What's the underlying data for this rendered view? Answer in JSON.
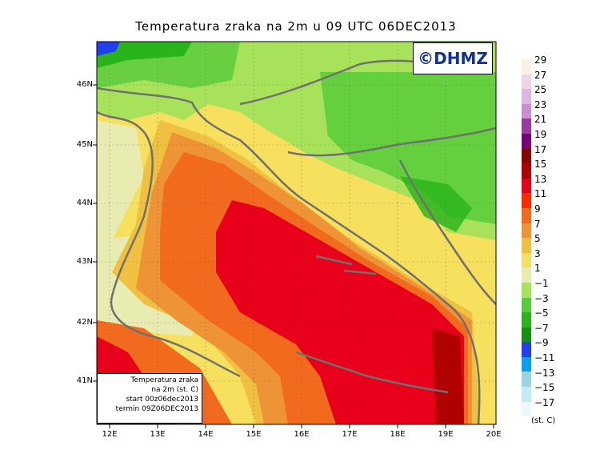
{
  "title": "Temperatura zraka na 2m u 09 UTC 06DEC2013",
  "logo": "©DHMZ",
  "infobox": {
    "line1": "Temperatura zraka",
    "line2": "na 2m (st. C)",
    "line3": "start 00z06dec2013",
    "line4": "termin 09Z06DEC2013"
  },
  "lat_labels": [
    "46N",
    "45N",
    "44N",
    "43N",
    "42N",
    "41N"
  ],
  "lon_labels": [
    "12E",
    "13E",
    "14E",
    "15E",
    "16E",
    "17E",
    "18E",
    "19E",
    "20E"
  ],
  "colorbar": {
    "units": "(st. C)",
    "labels": [
      "29",
      "27",
      "25",
      "23",
      "21",
      "19",
      "17",
      "15",
      "13",
      "11",
      "9",
      "7",
      "5",
      "3",
      "1",
      "−1",
      "−3",
      "−5",
      "−7",
      "−9",
      "−11",
      "−13",
      "−15",
      "−17"
    ],
    "colors": [
      "#fdf0e4",
      "#ecd6e6",
      "#dcb6dc",
      "#c98fd0",
      "#9a3aa0",
      "#7a007a",
      "#8a0000",
      "#b00000",
      "#e8001a",
      "#ff2a00",
      "#f26a1e",
      "#ee9436",
      "#f0c040",
      "#f6e05e",
      "#e8ecb0",
      "#a8e25a",
      "#58cc3a",
      "#28b41a",
      "#129012",
      "#2040f0",
      "#0aa0f0",
      "#9ad4e6",
      "#c6eaf2",
      "#ecf8fa"
    ]
  },
  "colors": {
    "coast": "#707070",
    "sea_hot": "#e8001a",
    "sea_warm": "#f26a1e",
    "land_green": "#58cc3a",
    "land_light": "#a8e25a"
  }
}
